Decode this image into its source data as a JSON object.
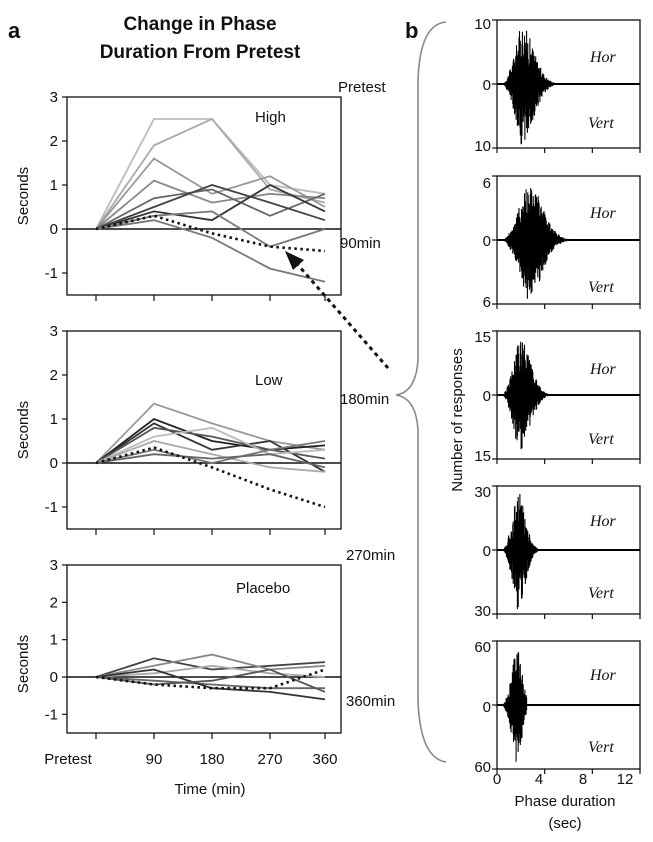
{
  "panel_a": {
    "letter": "a",
    "title_line1": "Change in Phase",
    "title_line2": "Duration From Pretest",
    "ylabel": "Seconds",
    "xlabel": "Time (min)",
    "x_ticks": [
      "Pretest",
      "90",
      "180",
      "270",
      "360"
    ],
    "y_ticks": [
      "3",
      "2",
      "1",
      "0",
      "-1"
    ]
  },
  "panel_b": {
    "letter": "b",
    "ylabel": "Number of responses",
    "xlabel_line1": "Phase duration",
    "xlabel_line2": "(sec)",
    "x_ticks": [
      "0",
      "4",
      "8",
      "12"
    ],
    "hor_label": "Hor",
    "vert_label": "Vert"
  },
  "time_labels": [
    "Pretest",
    "90min",
    "180min",
    "270min",
    "360min"
  ],
  "colors": {
    "ink": "#111111"
  },
  "chart_data": [
    {
      "type": "line",
      "panel": "a-top",
      "label": "High",
      "x": [
        "Pretest",
        "90",
        "180",
        "270",
        "360"
      ],
      "ylim": [
        -1.5,
        3
      ],
      "series": [
        {
          "values": [
            0,
            2.5,
            2.5,
            1.0,
            0.8
          ],
          "color": "#bbbbbb"
        },
        {
          "values": [
            0,
            1.9,
            2.5,
            0.9,
            0.6
          ],
          "color": "#aaaaaa"
        },
        {
          "values": [
            0,
            1.6,
            0.8,
            1.2,
            0.5
          ],
          "color": "#999999"
        },
        {
          "values": [
            0,
            1.1,
            0.6,
            0.8,
            0.7
          ],
          "color": "#888888"
        },
        {
          "values": [
            0,
            0.7,
            0.9,
            0.3,
            0.8
          ],
          "color": "#666666"
        },
        {
          "values": [
            0,
            0.5,
            1.0,
            0.6,
            0.2
          ],
          "color": "#444444"
        },
        {
          "values": [
            0,
            0.4,
            0.2,
            1.0,
            0.4
          ],
          "color": "#333333"
        },
        {
          "values": [
            0,
            0.3,
            0.4,
            -0.4,
            0.0
          ],
          "color": "#777777"
        },
        {
          "values": [
            0,
            0.2,
            -0.2,
            -0.9,
            -1.2
          ],
          "color": "#777777"
        },
        {
          "values": [
            0,
            0.3,
            -0.1,
            -0.4,
            -0.5
          ],
          "color": "#111111",
          "dotted": true
        }
      ]
    },
    {
      "type": "line",
      "panel": "a-middle",
      "label": "Low",
      "x": [
        "Pretest",
        "90",
        "180",
        "270",
        "360"
      ],
      "ylim": [
        -1.5,
        3
      ],
      "series": [
        {
          "values": [
            0,
            1.35,
            0.9,
            0.5,
            0.3
          ],
          "color": "#999999"
        },
        {
          "values": [
            0,
            1.0,
            0.5,
            0.3,
            0.4
          ],
          "color": "#222222"
        },
        {
          "values": [
            0,
            0.9,
            0.3,
            0.5,
            -0.2
          ],
          "color": "#333333"
        },
        {
          "values": [
            0,
            0.8,
            0.6,
            0.3,
            0.1
          ],
          "color": "#555555"
        },
        {
          "values": [
            0,
            0.6,
            0.8,
            0.2,
            0.3
          ],
          "color": "#bbbbbb"
        },
        {
          "values": [
            0,
            0.5,
            0.2,
            -0.1,
            -0.2
          ],
          "color": "#aaaaaa"
        },
        {
          "values": [
            0,
            0.3,
            0.0,
            0.3,
            0.5
          ],
          "color": "#777777"
        },
        {
          "values": [
            0,
            0.2,
            0.1,
            0.2,
            -0.1
          ],
          "color": "#666666"
        },
        {
          "values": [
            0,
            0.35,
            -0.1,
            -0.6,
            -1.0
          ],
          "color": "#111111",
          "dotted": true
        }
      ]
    },
    {
      "type": "line",
      "panel": "a-bottom",
      "label": "Placebo",
      "x": [
        "Pretest",
        "90",
        "180",
        "270",
        "360"
      ],
      "ylim": [
        -1.5,
        3
      ],
      "series": [
        {
          "values": [
            0,
            0.5,
            0.2,
            0.3,
            0.4
          ],
          "color": "#444444"
        },
        {
          "values": [
            0,
            0.3,
            0.6,
            0.2,
            0.3
          ],
          "color": "#888888"
        },
        {
          "values": [
            0,
            0.1,
            0.3,
            0.1,
            0.0
          ],
          "color": "#aaaaaa"
        },
        {
          "values": [
            0,
            -0.1,
            -0.2,
            -0.3,
            -0.3
          ],
          "color": "#666666"
        },
        {
          "values": [
            0,
            0.2,
            -0.3,
            -0.4,
            -0.6
          ],
          "color": "#333333"
        },
        {
          "values": [
            0,
            -0.2,
            -0.1,
            0.2,
            -0.4
          ],
          "color": "#555555"
        },
        {
          "values": [
            0,
            -0.2,
            -0.3,
            -0.3,
            0.2
          ],
          "color": "#111111",
          "dotted": true
        }
      ]
    },
    {
      "type": "histogram",
      "panel": "b",
      "time_points": [
        "Pretest",
        "90min",
        "180min",
        "270min",
        "360min"
      ],
      "xlim": [
        0,
        12
      ],
      "panels": [
        {
          "ymax": 10,
          "y_ticks": [
            "10",
            "0",
            "10"
          ],
          "peak_x": 2.0,
          "spread": 1.6,
          "tail": 6.0
        },
        {
          "ymax": 6,
          "y_ticks": [
            "6",
            "0",
            "6"
          ],
          "peak_x": 2.5,
          "spread": 1.9,
          "tail": 8.5
        },
        {
          "ymax": 15,
          "y_ticks": [
            "15",
            "0",
            "15"
          ],
          "peak_x": 1.8,
          "spread": 1.4,
          "tail": 6.0
        },
        {
          "ymax": 30,
          "y_ticks": [
            "30",
            "0",
            "30"
          ],
          "peak_x": 1.7,
          "spread": 1.0,
          "tail": 3.8
        },
        {
          "ymax": 60,
          "y_ticks": [
            "60",
            "0",
            "60"
          ],
          "peak_x": 1.6,
          "spread": 0.7,
          "tail": 2.5
        }
      ]
    }
  ]
}
